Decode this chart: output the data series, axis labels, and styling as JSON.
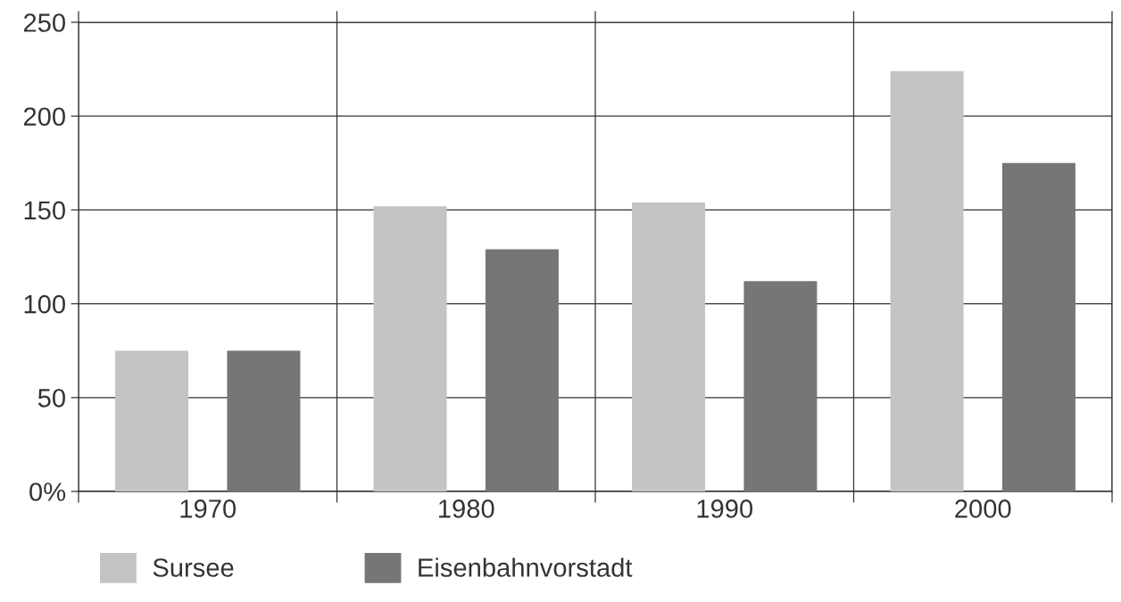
{
  "chart_data": {
    "type": "bar",
    "categories": [
      "1970",
      "1980",
      "1990",
      "2000"
    ],
    "series": [
      {
        "name": "Sursee",
        "color": "#c4c4c4",
        "values": [
          75,
          152,
          154,
          224
        ]
      },
      {
        "name": "Eisenbahnvorstadt",
        "color": "#767676",
        "values": [
          75,
          129,
          112,
          175
        ]
      }
    ],
    "ylim": [
      0,
      250
    ],
    "yticks": [
      {
        "value": 0,
        "label": "0%"
      },
      50,
      100,
      150,
      200,
      250
    ],
    "grid": true,
    "legend": "bottom"
  }
}
